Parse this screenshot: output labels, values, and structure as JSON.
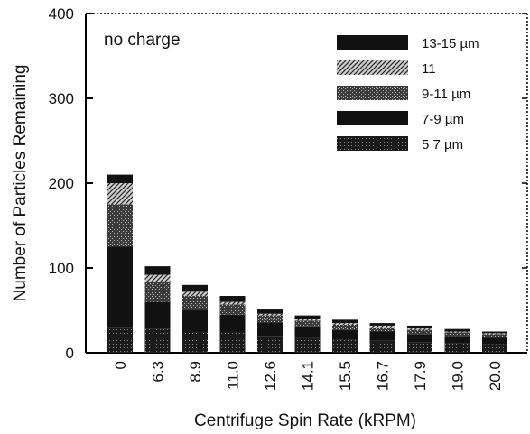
{
  "chart_data": {
    "type": "bar",
    "stacked": true,
    "title": "",
    "annotation": "no charge",
    "xlabel": "Centrifuge Spin Rate (kRPM)",
    "ylabel": "Number of Particles Remaining",
    "ylim": [
      0,
      400
    ],
    "yticks": [
      "0",
      "100",
      "200",
      "300",
      "400"
    ],
    "grid": false,
    "legend_position": "top-right",
    "categories": [
      "0",
      "6.3",
      "8.9",
      "11.0",
      "12.6",
      "14.1",
      "15.5",
      "16.7",
      "17.9",
      "19.0",
      "20.0"
    ],
    "series": [
      {
        "name": "5 7 µm",
        "pattern": "dark-stipple",
        "values": [
          30,
          28,
          25,
          25,
          20,
          18,
          15,
          14,
          12,
          11,
          10
        ]
      },
      {
        "name": "7-9 µm",
        "pattern": "solid",
        "values": [
          95,
          32,
          25,
          20,
          16,
          13,
          12,
          11,
          10,
          9,
          8
        ]
      },
      {
        "name": "9-11 µm",
        "pattern": "dotted",
        "values": [
          50,
          24,
          17,
          12,
          8,
          7,
          6,
          5,
          5,
          4,
          4
        ]
      },
      {
        "name": "11",
        "pattern": "hatched",
        "values": [
          25,
          8,
          5,
          3,
          2,
          2,
          2,
          2,
          2,
          1,
          1
        ]
      },
      {
        "name": "13-15 µm",
        "pattern": "solid",
        "values": [
          10,
          10,
          8,
          7,
          5,
          4,
          4,
          3,
          3,
          3,
          2
        ]
      }
    ]
  }
}
